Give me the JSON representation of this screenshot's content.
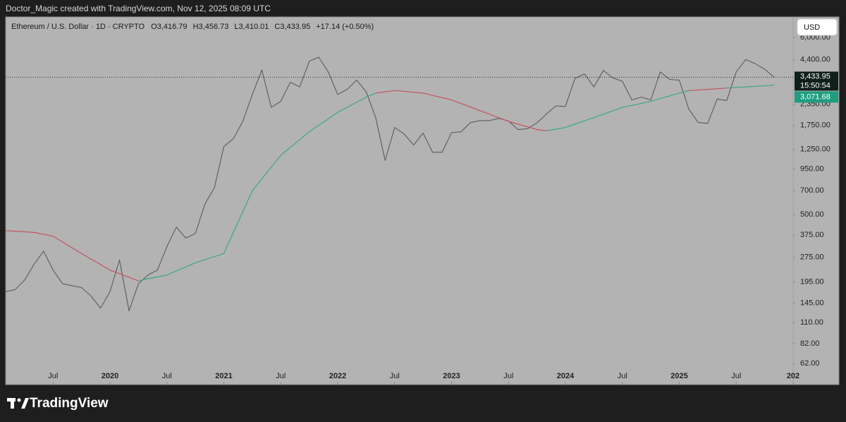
{
  "header": {
    "credit": "Doctor_Magic created with TradingView.com, Nov 12, 2025 08:09 UTC"
  },
  "footer": {
    "brand": "TradingView"
  },
  "toolbar": {
    "currency": "USD"
  },
  "chart_data": {
    "type": "line",
    "title": "Ethereum / U.S. Dollar · 1D · CRYPTO",
    "ohlc": [
      "O3,416.79",
      "H3,456.73",
      "L3,410.01",
      "C3,433.95",
      "+17.14 (+0.50%)"
    ],
    "log_scale": true,
    "grid": false,
    "xlim": [
      "2019-02",
      "2026-01"
    ],
    "xticks": [
      {
        "value": "2019-07",
        "label": "Jul"
      },
      {
        "value": "2020-01",
        "label": "2020"
      },
      {
        "value": "2020-07",
        "label": "Jul"
      },
      {
        "value": "2021-01",
        "label": "2021"
      },
      {
        "value": "2021-07",
        "label": "Jul"
      },
      {
        "value": "2022-01",
        "label": "2022"
      },
      {
        "value": "2022-07",
        "label": "Jul"
      },
      {
        "value": "2023-01",
        "label": "2023"
      },
      {
        "value": "2023-07",
        "label": "Jul"
      },
      {
        "value": "2024-01",
        "label": "2024"
      },
      {
        "value": "2024-07",
        "label": "Jul"
      },
      {
        "value": "2025-01",
        "label": "2025"
      },
      {
        "value": "2025-07",
        "label": "Jul"
      },
      {
        "value": "2026-01",
        "label": "202"
      }
    ],
    "ylim": [
      58,
      8000
    ],
    "yticks": [
      {
        "value": 62,
        "label": "62.00"
      },
      {
        "value": 82,
        "label": "82.00"
      },
      {
        "value": 110,
        "label": "110.00"
      },
      {
        "value": 145,
        "label": "145.00"
      },
      {
        "value": 195,
        "label": "195.00"
      },
      {
        "value": 275,
        "label": "275.00"
      },
      {
        "value": 375,
        "label": "375.00"
      },
      {
        "value": 500,
        "label": "500.00"
      },
      {
        "value": 700,
        "label": "700.00"
      },
      {
        "value": 950,
        "label": "950.00"
      },
      {
        "value": 1250,
        "label": "1,250.00"
      },
      {
        "value": 1750,
        "label": "1,750.00"
      },
      {
        "value": 2350,
        "label": "2,350.00"
      },
      {
        "value": 4400,
        "label": "4,400.00"
      },
      {
        "value": 6000,
        "label": "6,000.00"
      }
    ],
    "series": [
      {
        "color": "#5c5c5c",
        "x": [
          "2019-02",
          "2019-03",
          "2019-04",
          "2019-05",
          "2019-06",
          "2019-07",
          "2019-08",
          "2019-09",
          "2019-10",
          "2019-11",
          "2019-12",
          "2020-01",
          "2020-02",
          "2020-03",
          "2020-04",
          "2020-05",
          "2020-06",
          "2020-07",
          "2020-08",
          "2020-09",
          "2020-10",
          "2020-11",
          "2020-12",
          "2021-01",
          "2021-02",
          "2021-03",
          "2021-04",
          "2021-05",
          "2021-06",
          "2021-07",
          "2021-08",
          "2021-09",
          "2021-10",
          "2021-11",
          "2021-12",
          "2022-01",
          "2022-02",
          "2022-03",
          "2022-04",
          "2022-05",
          "2022-06",
          "2022-07",
          "2022-08",
          "2022-09",
          "2022-10",
          "2022-11",
          "2022-12",
          "2023-01",
          "2023-02",
          "2023-03",
          "2023-04",
          "2023-05",
          "2023-06",
          "2023-07",
          "2023-08",
          "2023-09",
          "2023-10",
          "2023-11",
          "2023-12",
          "2024-01",
          "2024-02",
          "2024-03",
          "2024-04",
          "2024-05",
          "2024-06",
          "2024-07",
          "2024-08",
          "2024-09",
          "2024-10",
          "2024-11",
          "2024-12",
          "2025-01",
          "2025-02",
          "2025-03",
          "2025-04",
          "2025-05",
          "2025-06",
          "2025-07",
          "2025-08",
          "2025-09",
          "2025-10",
          "2025-11"
        ],
        "values": [
          170,
          175,
          200,
          250,
          300,
          230,
          190,
          185,
          180,
          160,
          135,
          170,
          265,
          130,
          190,
          215,
          230,
          320,
          420,
          360,
          385,
          580,
          730,
          1300,
          1450,
          1850,
          2700,
          3800,
          2250,
          2450,
          3200,
          3000,
          4300,
          4550,
          3700,
          2700,
          2900,
          3300,
          2800,
          1950,
          1070,
          1700,
          1550,
          1330,
          1570,
          1200,
          1200,
          1580,
          1600,
          1820,
          1870,
          1870,
          1930,
          1860,
          1650,
          1670,
          1810,
          2050,
          2300,
          2280,
          3380,
          3600,
          3000,
          3780,
          3400,
          3250,
          2500,
          2600,
          2500,
          3700,
          3330,
          3300,
          2200,
          1820,
          1800,
          2530,
          2480,
          3700,
          4400,
          4150,
          3850,
          3433.95
        ]
      },
      {
        "color": "#c2555d",
        "x": [
          "2019-02",
          "2019-05",
          "2019-07",
          "2019-10",
          "2020-01",
          "2020-04"
        ],
        "values": [
          400,
          390,
          370,
          290,
          230,
          198
        ]
      },
      {
        "color": "#3ba88a",
        "x": [
          "2020-04",
          "2020-07",
          "2020-10",
          "2021-01",
          "2021-04",
          "2021-07",
          "2021-10",
          "2022-01",
          "2022-04",
          "2022-05"
        ],
        "values": [
          198,
          215,
          255,
          290,
          700,
          1150,
          1600,
          2100,
          2600,
          2750
        ]
      },
      {
        "color": "#c2555d",
        "x": [
          "2022-05",
          "2022-07",
          "2022-10",
          "2023-01",
          "2023-04",
          "2023-07",
          "2023-10",
          "2023-11"
        ],
        "values": [
          2750,
          2850,
          2750,
          2500,
          2150,
          1850,
          1650,
          1620
        ]
      },
      {
        "color": "#3ba88a",
        "x": [
          "2023-11",
          "2024-01",
          "2024-04",
          "2024-07",
          "2024-10",
          "2025-01",
          "2025-02"
        ],
        "values": [
          1620,
          1700,
          1950,
          2250,
          2450,
          2750,
          2850
        ]
      },
      {
        "color": "#c2555d",
        "x": [
          "2025-02",
          "2025-04",
          "2025-06"
        ],
        "values": [
          2850,
          2900,
          2950
        ]
      },
      {
        "color": "#3ba88a",
        "x": [
          "2025-06",
          "2025-08",
          "2025-11"
        ],
        "values": [
          2950,
          3000,
          3071.68
        ]
      }
    ],
    "last_price": {
      "value": 3433.95,
      "label": "3,433.95",
      "countdown": "15:50:54"
    },
    "ma_last": {
      "value": 3071.68,
      "label": "3,071.68"
    }
  }
}
